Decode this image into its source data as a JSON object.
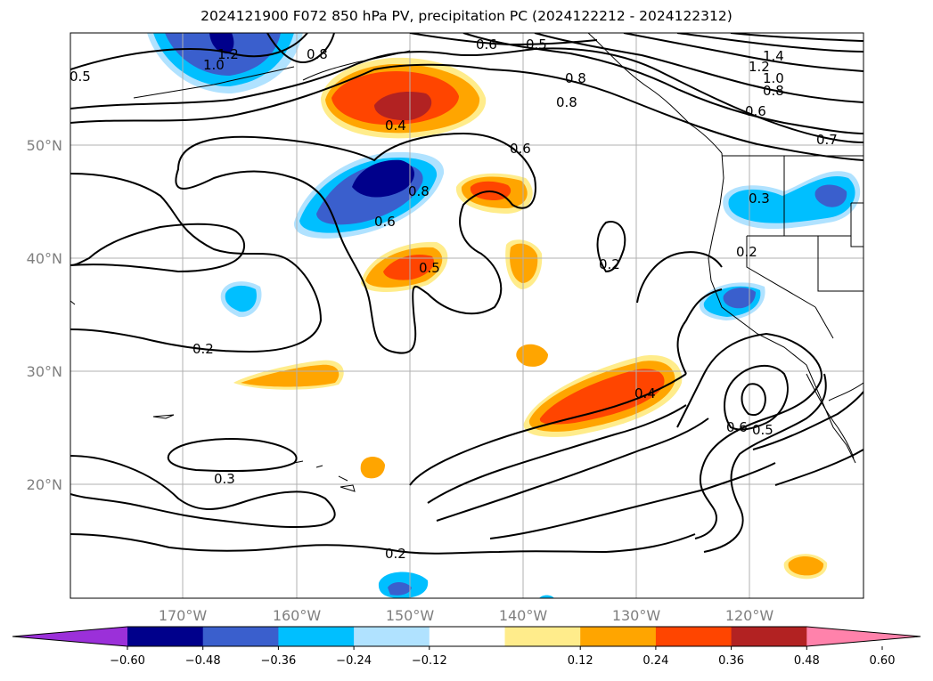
{
  "title": "2024121900 F072 850 hPa PV, precipitation PC (2024122212 - 2024122312)",
  "lat_labels": [
    "50°N",
    "40°N",
    "30°N",
    "20°N"
  ],
  "lon_labels": [
    "170°W",
    "160°W",
    "150°W",
    "140°W",
    "130°W",
    "120°W"
  ],
  "contour_labels": [
    "0.5",
    "1.2",
    "1.0",
    "0.8",
    "0.6",
    "0.5",
    "1.4",
    "1.2",
    "1.0",
    "0.8",
    "0.6",
    "0.7",
    "0.8",
    "0.8",
    "0.6",
    "0.4",
    "0.6",
    "0.8",
    "0.3",
    "0.2",
    "0.5",
    "0.2",
    "0.2",
    "0.4",
    "0.6",
    "0.5",
    "0.3",
    "0.2"
  ],
  "colorbar": {
    "ticks": [
      "−0.60",
      "−0.48",
      "−0.36",
      "−0.24",
      "−0.12",
      "0.12",
      "0.24",
      "0.36",
      "0.48",
      "0.60"
    ],
    "colors": [
      "#9b30d9",
      "#00008b",
      "#3a5fcd",
      "#00bfff",
      "#b0e2ff",
      "#ffffff",
      "#ffec8b",
      "#ffa500",
      "#ff4500",
      "#b22222",
      "#ff82ab"
    ]
  },
  "precip_colors": {
    "light_blue": "#b0e2ff",
    "blue": "#00bfff",
    "mid_blue": "#3a5fcd",
    "navy": "#00008b",
    "yellow": "#ffec8b",
    "orange": "#ffa500",
    "red_orange": "#ff4500",
    "dark_red": "#b22222"
  }
}
